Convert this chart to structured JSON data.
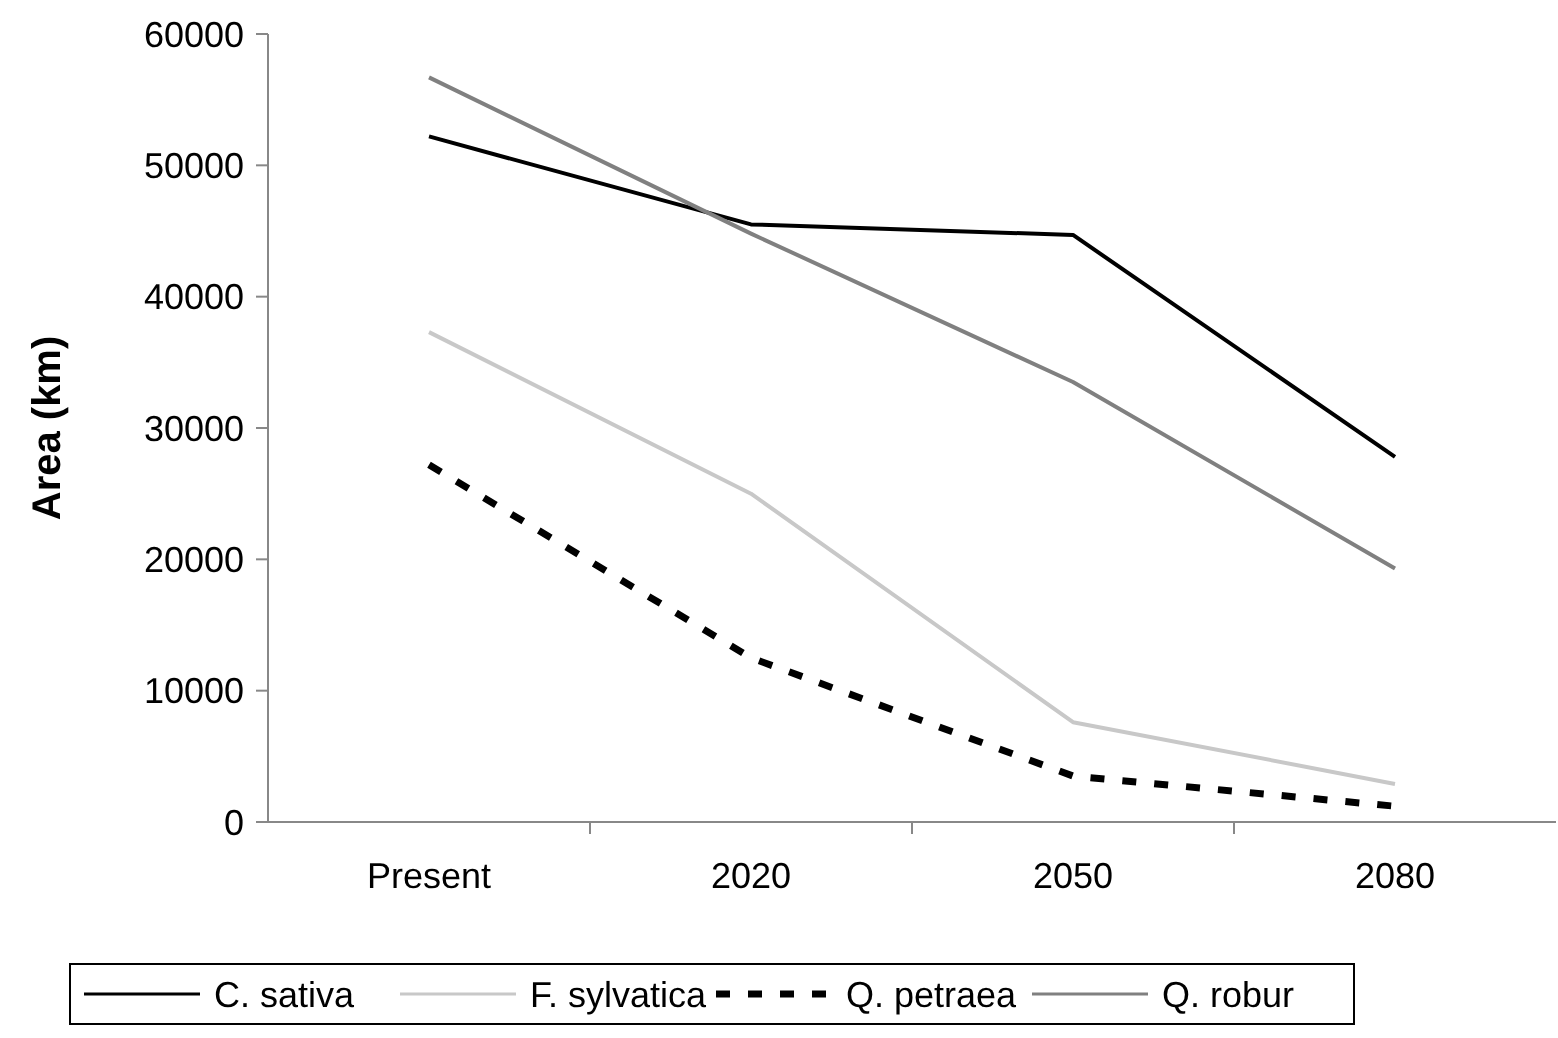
{
  "chart_data": {
    "type": "line",
    "ylabel": "Area (km)",
    "categories": [
      "Present",
      "2020",
      "2050",
      "2080"
    ],
    "series": [
      {
        "name": "C. sativa",
        "color": "#000000",
        "values": [
          52200,
          45500,
          44700,
          27800
        ],
        "line_style": "solid"
      },
      {
        "name": "F. sylvatica",
        "color": "#c8c8c8",
        "values": [
          37300,
          25000,
          7600,
          2900
        ],
        "line_style": "solid"
      },
      {
        "name": "Q. petraea",
        "color": "#000000",
        "values": [
          27200,
          12500,
          3500,
          1200
        ],
        "line_style": "dashed"
      },
      {
        "name": "Q. robur",
        "color": "#808080",
        "values": [
          56700,
          44800,
          33500,
          19300
        ],
        "line_style": "solid"
      }
    ],
    "ylim": [
      0,
      60000
    ],
    "yticks": [
      0,
      10000,
      20000,
      30000,
      40000,
      50000,
      60000
    ],
    "legend": "bottom",
    "grid": false
  }
}
